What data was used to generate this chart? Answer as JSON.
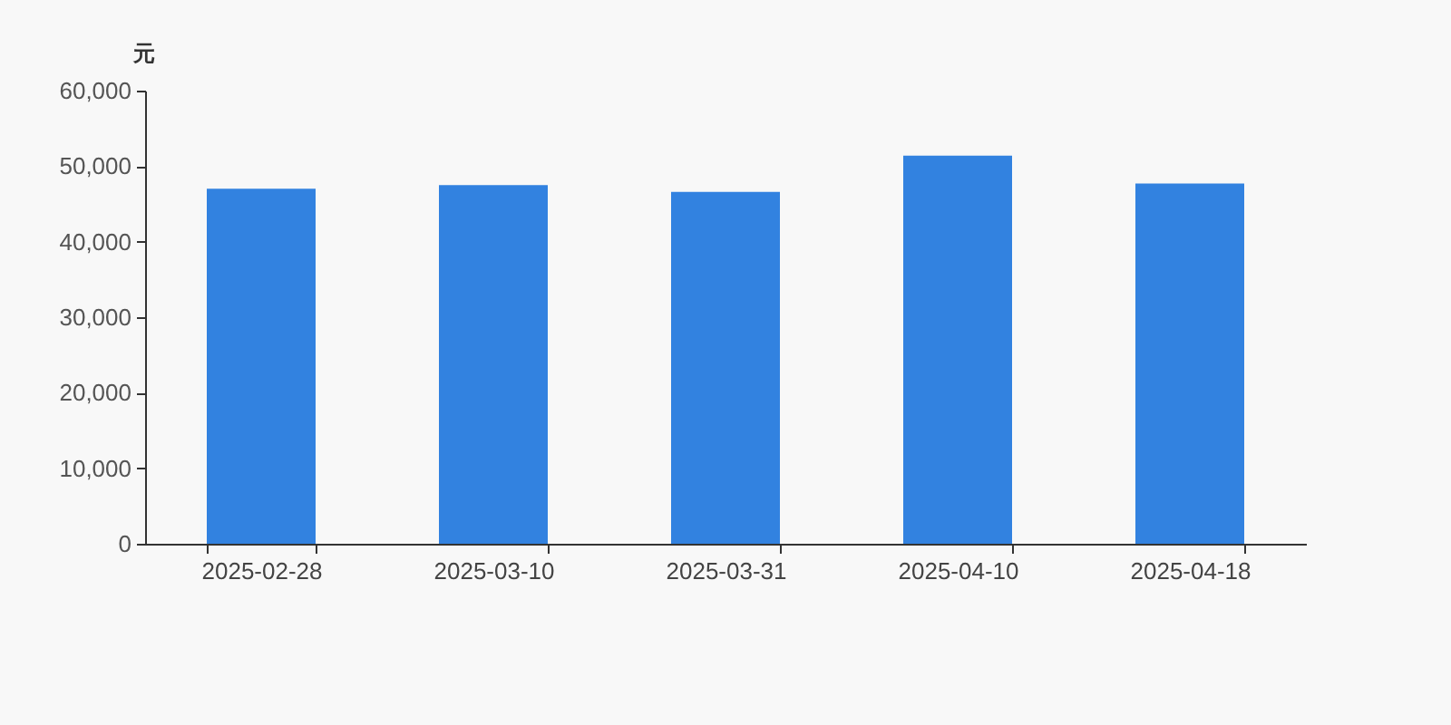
{
  "chart_data": {
    "type": "bar",
    "ylabel": "元",
    "categories": [
      "2025-02-28",
      "2025-03-10",
      "2025-03-31",
      "2025-04-10",
      "2025-04-18"
    ],
    "values": [
      47000,
      47500,
      46600,
      51400,
      47700
    ],
    "color": "#3282e0",
    "ylim": [
      0,
      60000
    ],
    "yticks": [
      0,
      {
        "value": 10000,
        "label": "10,000"
      },
      {
        "value": 20000,
        "label": "20,000"
      },
      {
        "value": 30000,
        "label": "30,000"
      },
      {
        "value": 40000,
        "label": "40,000"
      },
      {
        "value": 50000,
        "label": "50,000"
      },
      {
        "value": 60000,
        "label": "60,000"
      }
    ],
    "grid": false
  }
}
